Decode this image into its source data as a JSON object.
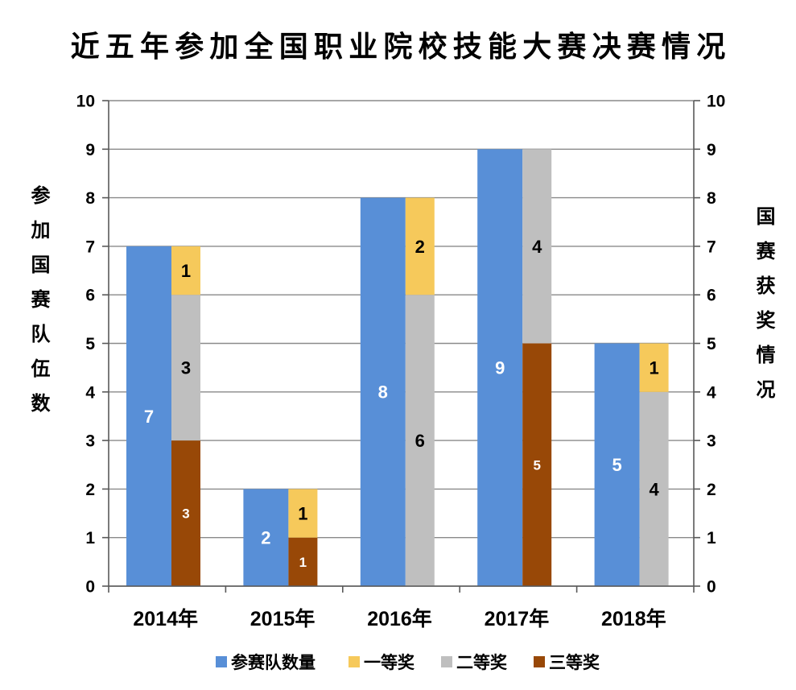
{
  "chart_data": {
    "type": "bar",
    "title": "近五年参加全国职业院校技能大赛决赛情况",
    "ylabel": "参加国赛队伍数",
    "y2label": "国赛获奖情况",
    "categories": [
      "2014年",
      "2015年",
      "2016年",
      "2017年",
      "2018年"
    ],
    "ylim": [
      0,
      10
    ],
    "y2lim": [
      0,
      10
    ],
    "yticks": [
      0,
      1,
      2,
      3,
      4,
      5,
      6,
      7,
      8,
      9,
      10
    ],
    "y2ticks": [
      0,
      1,
      2,
      3,
      4,
      5,
      6,
      7,
      8,
      9,
      10
    ],
    "stacked": true,
    "grid": true,
    "legend": "bottom",
    "series": [
      {
        "name": "参赛队数量",
        "values": [
          7,
          2,
          8,
          9,
          5
        ],
        "color": "#588FD7",
        "axis": "left"
      },
      {
        "name": "一等奖",
        "values": [
          1,
          1,
          2,
          0,
          1
        ],
        "color": "#F6C95B",
        "axis": "right"
      },
      {
        "name": "二等奖",
        "values": [
          3,
          0,
          6,
          4,
          4
        ],
        "color": "#BFBFBF",
        "axis": "right"
      },
      {
        "name": "三等奖",
        "values": [
          3,
          1,
          0,
          5,
          0
        ],
        "color": "#984807",
        "axis": "right"
      }
    ]
  }
}
